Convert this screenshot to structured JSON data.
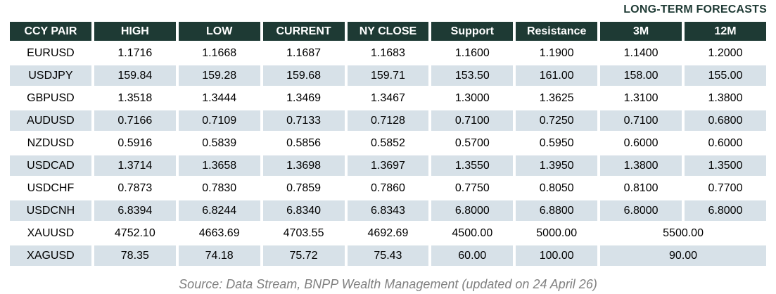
{
  "forecast_label": "LONG-TERM FORECASTS",
  "chart_data": {
    "type": "table",
    "title": "LONG-TERM FORECASTS",
    "columns": [
      "CCY PAIR",
      "HIGH",
      "LOW",
      "CURRENT",
      "NY CLOSE",
      "Support",
      "Resistance",
      "3M",
      "12M"
    ],
    "rows": [
      {
        "cells": [
          "EURUSD",
          "1.1716",
          "1.1668",
          "1.1687",
          "1.1683",
          "1.1600",
          "1.1900",
          "1.1400",
          "1.2000"
        ]
      },
      {
        "cells": [
          "USDJPY",
          "159.84",
          "159.28",
          "159.68",
          "159.71",
          "153.50",
          "161.00",
          "158.00",
          "155.00"
        ]
      },
      {
        "cells": [
          "GBPUSD",
          "1.3518",
          "1.3444",
          "1.3469",
          "1.3467",
          "1.3000",
          "1.3625",
          "1.3100",
          "1.3800"
        ]
      },
      {
        "cells": [
          "AUDUSD",
          "0.7166",
          "0.7109",
          "0.7133",
          "0.7128",
          "0.7100",
          "0.7250",
          "0.7100",
          "0.6800"
        ]
      },
      {
        "cells": [
          "NZDUSD",
          "0.5916",
          "0.5839",
          "0.5856",
          "0.5852",
          "0.5700",
          "0.5950",
          "0.6000",
          "0.6000"
        ]
      },
      {
        "cells": [
          "USDCAD",
          "1.3714",
          "1.3658",
          "1.3698",
          "1.3697",
          "1.3550",
          "1.3950",
          "1.3800",
          "1.3500"
        ]
      },
      {
        "cells": [
          "USDCHF",
          "0.7873",
          "0.7830",
          "0.7859",
          "0.7860",
          "0.7750",
          "0.8050",
          "0.8100",
          "0.7700"
        ]
      },
      {
        "cells": [
          "USDCNH",
          "6.8394",
          "6.8244",
          "6.8340",
          "6.8343",
          "6.8000",
          "6.8800",
          "6.8000",
          "6.8000"
        ]
      },
      {
        "cells": [
          "XAUUSD",
          "4752.10",
          "4663.69",
          "4703.55",
          "4692.69",
          "4500.00",
          "5000.00",
          "5500.00"
        ],
        "merged_forecast": true
      },
      {
        "cells": [
          "XAGUSD",
          "78.35",
          "74.18",
          "75.72",
          "75.43",
          "60.00",
          "100.00",
          "90.00"
        ],
        "merged_forecast": true
      }
    ],
    "footnote": "Source: Data Stream, BNPP Wealth Management (updated on 24 April 26)",
    "layout": {
      "stripe_pattern": "even rows white, odd rows striped",
      "grid": "white gaps between cells"
    }
  },
  "colors": {
    "header_bg": "#1e3a34",
    "stripe": "#d7e1e8",
    "header_text": "#ffffff",
    "source_color": "#808080"
  }
}
